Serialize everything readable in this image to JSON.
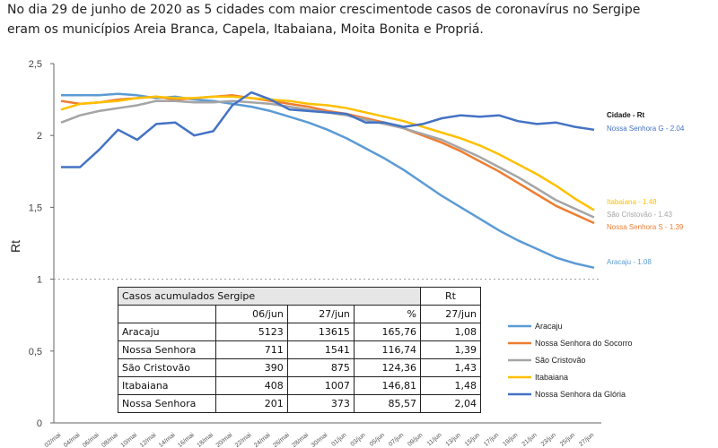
{
  "caption": {
    "line1": "No dia 29 de junho  de 2020 as 5 cidades com maior crescimentode casos de coronavírus no Sergipe",
    "line2": "eram  os municípios Areia Branca, Capela, Itabaiana, Moita Bonita e Propriá."
  },
  "chart_data": {
    "type": "line",
    "title": "",
    "xlabel": "",
    "ylabel": "Rt",
    "ylim": [
      0,
      2.5
    ],
    "yticks": [
      "0",
      "0,5",
      "1",
      "1,5",
      "2",
      "2,5"
    ],
    "reference_line": 1,
    "x": [
      "02/mai",
      "04/mai",
      "06/mai",
      "08/mai",
      "10/mai",
      "12/mai",
      "14/mai",
      "16/mai",
      "18/mai",
      "20/mai",
      "22/mai",
      "24/mai",
      "26/mai",
      "28/mai",
      "30/mai",
      "01/jun",
      "03/jun",
      "05/jun",
      "07/jun",
      "09/jun",
      "11/jun",
      "13/jun",
      "15/jun",
      "17/jun",
      "19/jun",
      "21/jun",
      "23/jun",
      "25/jun",
      "27/jun"
    ],
    "end_label_header": "Cidade  - Rt",
    "series": [
      {
        "name": "Aracaju",
        "color": "#5b9bd5",
        "end_label": "Aracaju - 1.08",
        "values": [
          2.28,
          2.28,
          2.28,
          2.29,
          2.28,
          2.26,
          2.27,
          2.25,
          2.24,
          2.22,
          2.2,
          2.17,
          2.13,
          2.09,
          2.04,
          1.98,
          1.91,
          1.84,
          1.76,
          1.67,
          1.58,
          1.5,
          1.42,
          1.34,
          1.27,
          1.21,
          1.15,
          1.11,
          1.08
        ]
      },
      {
        "name": "Nossa Senhora do Socorro",
        "color": "#ed7d31",
        "end_label": "Nossa Senhora S - 1.39",
        "values": [
          2.24,
          2.22,
          2.23,
          2.25,
          2.26,
          2.27,
          2.25,
          2.26,
          2.27,
          2.28,
          2.26,
          2.24,
          2.22,
          2.2,
          2.17,
          2.15,
          2.12,
          2.09,
          2.05,
          2.0,
          1.95,
          1.89,
          1.82,
          1.75,
          1.67,
          1.59,
          1.51,
          1.45,
          1.39
        ]
      },
      {
        "name": "São Cristovão",
        "color": "#a5a5a5",
        "end_label": "São Cristovão - 1.43",
        "values": [
          2.09,
          2.14,
          2.17,
          2.19,
          2.21,
          2.24,
          2.24,
          2.23,
          2.23,
          2.24,
          2.23,
          2.22,
          2.2,
          2.18,
          2.16,
          2.14,
          2.11,
          2.08,
          2.05,
          2.01,
          1.97,
          1.91,
          1.85,
          1.78,
          1.71,
          1.63,
          1.55,
          1.49,
          1.43
        ]
      },
      {
        "name": "Itabaiana",
        "color": "#ffc000",
        "end_label": "Itabaiana - 1.48",
        "values": [
          2.18,
          2.22,
          2.23,
          2.24,
          2.26,
          2.27,
          2.26,
          2.26,
          2.27,
          2.27,
          2.26,
          2.25,
          2.24,
          2.22,
          2.21,
          2.19,
          2.16,
          2.13,
          2.1,
          2.06,
          2.02,
          1.98,
          1.93,
          1.87,
          1.8,
          1.73,
          1.65,
          1.56,
          1.48
        ]
      },
      {
        "name": "Nossa Senhora da Glória",
        "color": "#4472c4",
        "end_label": "Nossa Senhora G - 2.04",
        "values": [
          1.78,
          1.78,
          1.9,
          2.04,
          1.97,
          2.08,
          2.09,
          2.0,
          2.03,
          2.21,
          2.3,
          2.25,
          2.18,
          2.17,
          2.16,
          2.15,
          2.09,
          2.09,
          2.06,
          2.08,
          2.12,
          2.14,
          2.13,
          2.14,
          2.1,
          2.08,
          2.09,
          2.06,
          2.04
        ]
      }
    ]
  },
  "table": {
    "title": "Casos acumulados Sergipe",
    "rt_header": "Rt",
    "columns": [
      "",
      "06/jun",
      "27/jun",
      "%",
      "27/jun"
    ],
    "rows": [
      [
        "Aracaju",
        "5123",
        "13615",
        "165,76",
        "1,08"
      ],
      [
        "Nossa Senhora",
        "711",
        "1541",
        "116,74",
        "1,39"
      ],
      [
        "São Cristovão",
        "390",
        "875",
        "124,36",
        "1,43"
      ],
      [
        "Itabaiana",
        "408",
        "1007",
        "146,81",
        "1,48"
      ],
      [
        "Nossa Senhora",
        "201",
        "373",
        "85,57",
        "2,04"
      ]
    ]
  },
  "legend": [
    {
      "label": "Aracaju",
      "color": "#5b9bd5"
    },
    {
      "label": "Nossa Senhora do Socorro",
      "color": "#ed7d31"
    },
    {
      "label": "São Cristovão",
      "color": "#a5a5a5"
    },
    {
      "label": "Itabaiana",
      "color": "#ffc000"
    },
    {
      "label": "Nossa Senhora da Glória",
      "color": "#4472c4"
    }
  ]
}
